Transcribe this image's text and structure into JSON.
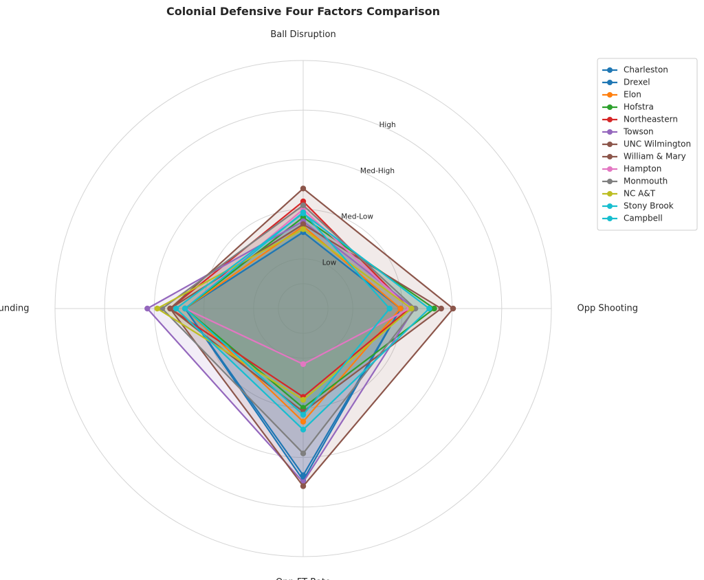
{
  "chart_data": {
    "type": "radar",
    "title": "Colonial Defensive Four Factors Comparison",
    "axes": [
      "Ball Disruption",
      "Opp Shooting",
      "Opp FT Rate",
      "Def Rebounding"
    ],
    "rings": [
      {
        "value": 0.25,
        "label": ""
      },
      {
        "value": 0.5,
        "label": "Low"
      },
      {
        "value": 1.0,
        "label": "Med-Low"
      },
      {
        "value": 1.5,
        "label": "Med-High"
      },
      {
        "value": 2.0,
        "label": "High"
      },
      {
        "value": 2.5,
        "label": ""
      }
    ],
    "rmax": 2.5,
    "grid": true,
    "legend_position": "upper-right-outside",
    "series": [
      {
        "name": "Charleston",
        "color": "#1f77b4",
        "values": [
          0.77,
          0.98,
          1.73,
          1.19
        ]
      },
      {
        "name": "Drexel",
        "color": "#1f77b4",
        "values": [
          0.77,
          0.98,
          1.68,
          1.19
        ]
      },
      {
        "name": "Elon",
        "color": "#ff7f0e",
        "values": [
          0.83,
          0.98,
          1.14,
          1.19
        ]
      },
      {
        "name": "Hofstra",
        "color": "#2ca02c",
        "values": [
          0.92,
          1.32,
          1.0,
          1.19
        ]
      },
      {
        "name": "Northeastern",
        "color": "#d62728",
        "values": [
          1.08,
          1.07,
          0.89,
          1.34
        ]
      },
      {
        "name": "Towson",
        "color": "#9467bd",
        "values": [
          0.88,
          1.12,
          1.75,
          1.57
        ]
      },
      {
        "name": "UNC Wilmington",
        "color": "#8c564b",
        "values": [
          0.85,
          1.39,
          1.04,
          1.34
        ]
      },
      {
        "name": "William & Mary",
        "color": "#8c564b",
        "values": [
          1.21,
          1.51,
          1.79,
          1.34
        ]
      },
      {
        "name": "Hampton",
        "color": "#e377c2",
        "values": [
          1.0,
          1.07,
          0.56,
          1.19
        ]
      },
      {
        "name": "Monmouth",
        "color": "#7f7f7f",
        "values": [
          1.04,
          1.13,
          1.46,
          1.42
        ]
      },
      {
        "name": "NC A&T",
        "color": "#bcbd22",
        "values": [
          0.8,
          1.09,
          0.92,
          1.47
        ]
      },
      {
        "name": "Stony Brook",
        "color": "#17becf",
        "values": [
          0.96,
          1.27,
          1.22,
          1.28
        ]
      },
      {
        "name": "Campbell",
        "color": "#17becf",
        "values": [
          0.97,
          0.87,
          1.07,
          1.19
        ]
      }
    ]
  }
}
